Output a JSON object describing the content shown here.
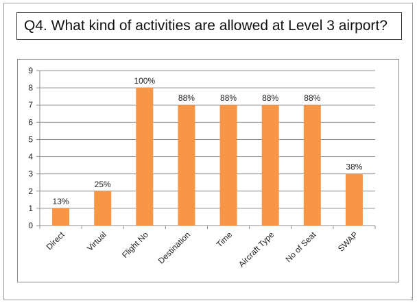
{
  "question": "Q4. What kind of activities are allowed at Level 3 airport?",
  "page_number": "7",
  "colors": {
    "bar": "#F79646",
    "grid": "#8c8c8c",
    "text": "#222222"
  },
  "chart_data": {
    "type": "bar",
    "categories": [
      "Direct",
      "Virtual",
      "Flight No",
      "Destination",
      "Time",
      "Aircraft Type",
      "No of Seat",
      "SWAP"
    ],
    "values": [
      1,
      2,
      8,
      7,
      7,
      7,
      7,
      3
    ],
    "data_labels": [
      "13%",
      "25%",
      "100%",
      "88%",
      "88%",
      "88%",
      "88%",
      "38%"
    ],
    "ylim": [
      0,
      9
    ],
    "yticks": [
      0,
      1,
      2,
      3,
      4,
      5,
      6,
      7,
      8,
      9
    ],
    "grid": true,
    "legend": false,
    "title": "",
    "xlabel": "",
    "ylabel": ""
  }
}
